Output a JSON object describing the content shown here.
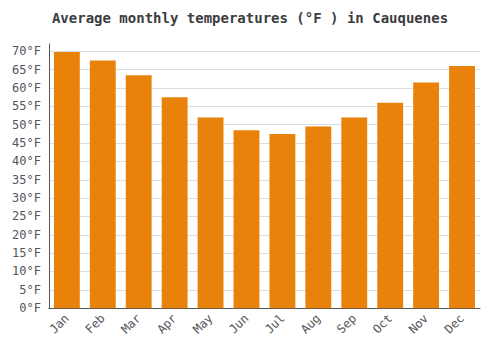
{
  "chart_data": {
    "type": "bar",
    "title": "Average monthly temperatures (°F ) in Cauquenes",
    "categories": [
      "Jan",
      "Feb",
      "Mar",
      "Apr",
      "May",
      "Jun",
      "Jul",
      "Aug",
      "Sep",
      "Oct",
      "Nov",
      "Dec"
    ],
    "values": [
      69.8,
      67.5,
      63.5,
      57.5,
      52.0,
      48.5,
      47.5,
      49.5,
      52.0,
      56.0,
      61.5,
      66.0
    ],
    "color": "#E8820A",
    "ylim": [
      0,
      72
    ],
    "yticks": [
      {
        "value": 0,
        "label": "0°F"
      },
      {
        "value": 5,
        "label": "5°F"
      },
      {
        "value": 10,
        "label": "10°F"
      },
      {
        "value": 15,
        "label": "15°F"
      },
      {
        "value": 20,
        "label": "20°F"
      },
      {
        "value": 25,
        "label": "25°F"
      },
      {
        "value": 30,
        "label": "30°F"
      },
      {
        "value": 35,
        "label": "35°F"
      },
      {
        "value": 40,
        "label": "40°F"
      },
      {
        "value": 45,
        "label": "45°F"
      },
      {
        "value": 50,
        "label": "50°F"
      },
      {
        "value": 55,
        "label": "55°F"
      },
      {
        "value": 60,
        "label": "60°F"
      },
      {
        "value": 65,
        "label": "65°F"
      },
      {
        "value": 70,
        "label": "70°F"
      }
    ],
    "grid": true
  }
}
